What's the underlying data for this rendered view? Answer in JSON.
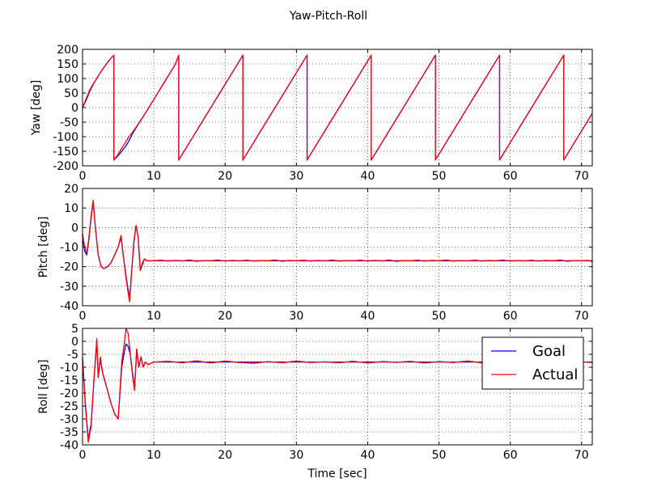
{
  "figure": {
    "title": "Yaw-Pitch-Roll",
    "xlabel": "Time [sec]"
  },
  "chart_data": [
    {
      "type": "line",
      "id": "yaw",
      "ylabel": "Yaw [deg]",
      "xlim": [
        0,
        71.5
      ],
      "ylim": [
        -200,
        200
      ],
      "xticks": [
        0,
        10,
        20,
        30,
        40,
        50,
        60,
        70
      ],
      "yticks": [
        200,
        150,
        100,
        50,
        0,
        -50,
        -100,
        -150,
        -200
      ],
      "grid": true,
      "series": [
        {
          "name": "Goal",
          "color": "#0000ff",
          "x": [
            0,
            0.5,
            1.0,
            1.5,
            2.0,
            2.5,
            3.0,
            3.5,
            4.0,
            4.4,
            4.4,
            5.0,
            5.5,
            6.0,
            6.5,
            7.0,
            8.0,
            9.0,
            10.0,
            11.0,
            12.0,
            13.0,
            13.5,
            13.5,
            15.0,
            17.0,
            19.0,
            21.0,
            22.5,
            22.5,
            24.0,
            26.0,
            28.0,
            30.0,
            31.5,
            31.5,
            33.0,
            35.0,
            37.0,
            39.0,
            40.5,
            40.5,
            42.0,
            44.0,
            46.0,
            48.0,
            49.5,
            49.5,
            51.0,
            53.0,
            55.0,
            57.0,
            58.5,
            58.5,
            60.0,
            62.0,
            64.0,
            66.0,
            67.5,
            67.5,
            69.0,
            71.5
          ],
          "y": [
            0,
            25,
            55,
            80,
            100,
            120,
            138,
            155,
            170,
            180,
            -180,
            -165,
            -150,
            -135,
            -115,
            -90,
            -50,
            -12,
            28,
            68,
            108,
            148,
            180,
            -180,
            -120,
            -40,
            40,
            120,
            180,
            -180,
            -120,
            -40,
            40,
            120,
            180,
            -180,
            -120,
            -40,
            40,
            120,
            180,
            -180,
            -120,
            -40,
            40,
            120,
            180,
            -180,
            -120,
            -40,
            40,
            120,
            180,
            -180,
            -120,
            -40,
            40,
            120,
            180,
            -180,
            -120,
            -20
          ]
        },
        {
          "name": "Actual",
          "color": "#ff0000",
          "x": [
            0,
            0.5,
            1.0,
            1.5,
            2.0,
            2.5,
            3.0,
            3.5,
            4.0,
            4.4,
            4.4,
            5.0,
            5.5,
            6.0,
            6.5,
            7.0,
            8.0,
            9.0,
            10.0,
            11.0,
            12.0,
            13.0,
            13.5,
            13.5,
            15.0,
            17.0,
            19.0,
            21.0,
            22.5,
            22.5,
            24.0,
            26.0,
            28.0,
            30.0,
            31.5,
            31.5,
            33.0,
            35.0,
            37.0,
            39.0,
            40.5,
            40.5,
            42.0,
            44.0,
            46.0,
            48.0,
            49.5,
            49.5,
            51.0,
            53.0,
            55.0,
            57.0,
            58.5,
            58.5,
            60.0,
            62.0,
            64.0,
            66.0,
            67.5,
            67.5,
            69.0,
            71.5
          ],
          "y": [
            0,
            30,
            60,
            82,
            100,
            120,
            138,
            155,
            170,
            180,
            -180,
            -160,
            -140,
            -120,
            -100,
            -85,
            -50,
            -12,
            28,
            68,
            108,
            148,
            180,
            -180,
            -120,
            -40,
            40,
            120,
            180,
            -180,
            -120,
            -40,
            40,
            120,
            180,
            -180,
            -120,
            -40,
            40,
            120,
            180,
            -180,
            -120,
            -40,
            40,
            120,
            180,
            -180,
            -120,
            -40,
            40,
            120,
            180,
            -180,
            -120,
            -40,
            40,
            120,
            180,
            -180,
            -120,
            -20
          ]
        }
      ]
    },
    {
      "type": "line",
      "id": "pitch",
      "ylabel": "Pitch [deg]",
      "xlim": [
        0,
        71.5
      ],
      "ylim": [
        -40,
        20
      ],
      "xticks": [
        0,
        10,
        20,
        30,
        40,
        50,
        60,
        70
      ],
      "yticks": [
        20,
        10,
        0,
        -10,
        -20,
        -30,
        -40
      ],
      "grid": true,
      "series": [
        {
          "name": "Goal",
          "color": "#0000ff",
          "x": [
            0,
            0.3,
            0.6,
            0.9,
            1.2,
            1.5,
            1.8,
            2.2,
            2.6,
            3.0,
            3.5,
            4.0,
            4.5,
            5.0,
            5.4,
            5.7,
            6.0,
            6.3,
            6.6,
            6.9,
            7.2,
            7.5,
            7.8,
            8.1,
            8.4,
            8.7,
            9.0,
            10,
            12,
            14,
            16,
            18,
            20,
            22,
            24,
            26,
            28,
            30,
            32,
            34,
            36,
            38,
            40,
            42,
            44,
            46,
            48,
            50,
            52,
            54,
            56,
            58,
            60,
            62,
            64,
            66,
            68,
            70,
            71.5
          ],
          "y": [
            -5,
            -12,
            -14,
            -6,
            5,
            13,
            0,
            -14,
            -20,
            -21,
            -20,
            -18,
            -14,
            -10,
            -5,
            -14,
            -22,
            -30,
            -36,
            -22,
            -8,
            1,
            -5,
            -22,
            -19,
            -16,
            -17,
            -17,
            -17,
            -17,
            -17,
            -17,
            -17,
            -17,
            -17,
            -17,
            -17,
            -17,
            -17,
            -17,
            -17,
            -17,
            -17,
            -17,
            -17,
            -17,
            -17,
            -17,
            -17,
            -17,
            -17,
            -17,
            -17,
            -17,
            -17,
            -17,
            -17,
            -17,
            -17
          ]
        },
        {
          "name": "Actual",
          "color": "#ff0000",
          "x": [
            0,
            0.3,
            0.6,
            0.9,
            1.2,
            1.5,
            1.8,
            2.2,
            2.6,
            3.0,
            3.5,
            4.0,
            4.5,
            5.0,
            5.4,
            5.7,
            6.0,
            6.3,
            6.6,
            6.9,
            7.2,
            7.5,
            7.8,
            8.1,
            8.4,
            8.7,
            9.0,
            10,
            11,
            12,
            13,
            14,
            15,
            16,
            17,
            18,
            19,
            20,
            21,
            22,
            23,
            24,
            25,
            26,
            27,
            28,
            29,
            30,
            31,
            32,
            33,
            34,
            35,
            36,
            37,
            38,
            39,
            40,
            41,
            42,
            43,
            44,
            45,
            46,
            47,
            48,
            49,
            50,
            51,
            52,
            53,
            54,
            55,
            56,
            57,
            58,
            59,
            60,
            61,
            62,
            63,
            64,
            65,
            66,
            67,
            68,
            69,
            70,
            71,
            71.5
          ],
          "y": [
            -3,
            -10,
            -13,
            -5,
            6,
            14,
            0,
            -14,
            -20,
            -21,
            -20,
            -18,
            -14,
            -10,
            -4,
            -14,
            -23,
            -31,
            -38,
            -22,
            -7,
            1,
            -5,
            -22,
            -18,
            -16,
            -17,
            -17,
            -16.7,
            -17.2,
            -16.8,
            -17.1,
            -16.6,
            -17.3,
            -16.9,
            -17,
            -16.6,
            -17.2,
            -16.8,
            -17.1,
            -16.7,
            -17.2,
            -16.9,
            -17,
            -16.6,
            -17.3,
            -16.8,
            -17,
            -16.7,
            -17.2,
            -16.8,
            -17.1,
            -16.6,
            -17.2,
            -16.9,
            -17,
            -16.7,
            -17.2,
            -16.8,
            -17.1,
            -16.6,
            -17.3,
            -16.9,
            -17,
            -16.7,
            -17.2,
            -16.8,
            -17,
            -16.6,
            -17.2,
            -16.9,
            -17.1,
            -16.7,
            -17.2,
            -16.8,
            -17,
            -16.6,
            -17.2,
            -16.9,
            -17.1,
            -16.7,
            -17.2,
            -16.8,
            -17,
            -16.6,
            -17.3,
            -16.9,
            -17,
            -16.8,
            -17.5
          ]
        }
      ]
    },
    {
      "type": "line",
      "id": "roll",
      "ylabel": "Roll [deg]",
      "xlabel": "Time [sec]",
      "xlim": [
        0,
        71.5
      ],
      "ylim": [
        -40,
        5
      ],
      "xticks": [
        0,
        10,
        20,
        30,
        40,
        50,
        60,
        70
      ],
      "yticks": [
        5,
        0,
        -5,
        -10,
        -15,
        -20,
        -25,
        -30,
        -35,
        -40
      ],
      "grid": true,
      "legend": {
        "placement": "top-right"
      },
      "series": [
        {
          "name": "Goal",
          "color": "#0000ff",
          "x": [
            0,
            0.4,
            0.8,
            1.2,
            1.6,
            2.0,
            2.2,
            2.5,
            2.8,
            3.2,
            3.6,
            4.0,
            4.5,
            5.0,
            5.5,
            5.8,
            6.1,
            6.4,
            6.7,
            7.0,
            7.3,
            7.6,
            7.9,
            8.2,
            8.5,
            8.8,
            9.2,
            10,
            12,
            14,
            16,
            18,
            20,
            22,
            24,
            26,
            28,
            30,
            32,
            34,
            36,
            38,
            40,
            42,
            44,
            46,
            48,
            50,
            52,
            54,
            56,
            58,
            60,
            62,
            64,
            66,
            68,
            70,
            71.5
          ],
          "y": [
            -6,
            -24,
            -38,
            -32,
            -15,
            0,
            -14,
            -7,
            -12,
            -16,
            -20,
            -24,
            -28,
            -30,
            -10,
            -5,
            -1,
            -2,
            -5,
            -12,
            -18,
            -3,
            -10,
            -6,
            -10,
            -8,
            -9,
            -8,
            -8,
            -8,
            -8,
            -8,
            -8,
            -8,
            -8,
            -8,
            -8,
            -8,
            -8,
            -8,
            -8,
            -8,
            -8,
            -8,
            -8,
            -8,
            -8,
            -8,
            -8,
            -8,
            -8,
            -8,
            -8,
            -8,
            -8,
            -8,
            -8,
            -8,
            -8
          ]
        },
        {
          "name": "Actual",
          "color": "#ff0000",
          "x": [
            0,
            0.4,
            0.8,
            1.2,
            1.6,
            2.0,
            2.2,
            2.5,
            2.8,
            3.2,
            3.6,
            4.0,
            4.5,
            5.0,
            5.5,
            5.8,
            6.1,
            6.4,
            6.7,
            7.0,
            7.3,
            7.6,
            7.9,
            8.2,
            8.5,
            8.8,
            9.2,
            10,
            12,
            14,
            16,
            18,
            20,
            22,
            24,
            26,
            28,
            30,
            32,
            34,
            36,
            38,
            40,
            42,
            44,
            46,
            48,
            50,
            52,
            54,
            56,
            58,
            60,
            62,
            64,
            66,
            68,
            70,
            71.5
          ],
          "y": [
            -7,
            -25,
            -39,
            -33,
            -15,
            1,
            -14,
            -6,
            -12,
            -16,
            -20,
            -24,
            -28,
            -30,
            -8,
            -2,
            5,
            3,
            -5,
            -13,
            -19,
            -3,
            -10,
            -6,
            -10,
            -8,
            -9,
            -8,
            -7.7,
            -8.3,
            -7.5,
            -8.4,
            -7.6,
            -8.2,
            -8.5,
            -7.8,
            -8.3,
            -7.6,
            -8.2,
            -7.9,
            -8.3,
            -7.7,
            -8.4,
            -7.8,
            -8.1,
            -7.7,
            -8.4,
            -7.8,
            -8.2,
            -7.6,
            -8.3,
            -7.9,
            -8.2,
            -7.7,
            -8.3,
            -7.8,
            -8.1,
            -7.9,
            -8.2
          ]
        }
      ]
    }
  ]
}
